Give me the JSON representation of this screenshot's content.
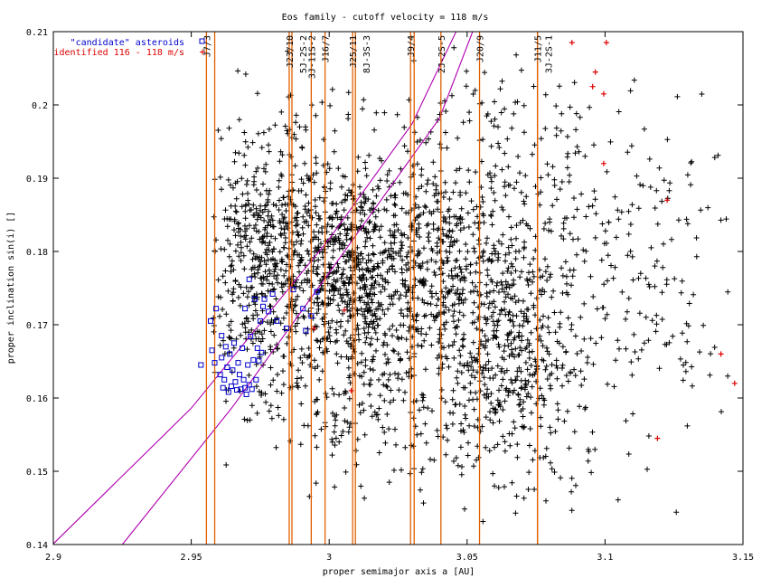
{
  "chart_data": {
    "type": "scatter",
    "title": "Eos family - cutoff velocity = 118 m/s",
    "xlabel": "proper semimajor axis a [AU]",
    "ylabel": "proper inclination sin(i) []",
    "xlim": [
      2.9,
      3.15
    ],
    "ylim": [
      0.14,
      0.21
    ],
    "x_ticks": [
      "2.9",
      "2.95",
      "3",
      "3.05",
      "3.1",
      "3.15"
    ],
    "y_ticks": [
      "0.14",
      "0.15",
      "0.16",
      "0.17",
      "0.18",
      "0.19",
      "0.2",
      "0.21"
    ],
    "grid": false,
    "legend_position": "top-left",
    "colors": {
      "family": "#000000",
      "candidate": "#0000cc",
      "identified": "#dd0000",
      "resonance": "#e06000",
      "secular": "#b000b0"
    },
    "series": [
      {
        "name": "\"candidate\" asteroids",
        "marker": "open-square",
        "color": "#0000cc"
      },
      {
        "name": "identified 116 - 118 m/s",
        "marker": "plus",
        "color": "#dd0000"
      }
    ],
    "resonances": [
      {
        "label": "J7/3",
        "a": 2.9555
      },
      {
        "label": "",
        "a": 2.9585
      },
      {
        "label": "J23/10",
        "a": 2.9855
      },
      {
        "label": "5J-2S-2",
        "a": 2.9865
      },
      {
        "label": "3J-11S-2",
        "a": 2.9935
      },
      {
        "label": "J16/7",
        "a": 2.9985
      },
      {
        "label": "J25/11",
        "a": 3.0085
      },
      {
        "label": "8J-3S-3",
        "a": 3.0095
      },
      {
        "label": "J9/4",
        "a": 3.0295
      },
      {
        "label": "",
        "a": 3.0308
      },
      {
        "label": "2J-2S-5",
        "a": 3.0405
      },
      {
        "label": "J20/9",
        "a": 3.0545
      },
      {
        "label": "J11/5",
        "a": 3.0755
      },
      {
        "label": "3J-2S-1",
        "a": 3.0755
      }
    ],
    "secular_lines": [
      {
        "points": [
          [
            2.9,
            0.1401
          ],
          [
            2.95,
            0.1586
          ],
          [
            3.0,
            0.1817
          ],
          [
            3.03,
            0.1974
          ],
          [
            3.046,
            0.21
          ]
        ]
      },
      {
        "points": [
          [
            2.925,
            0.14
          ],
          [
            2.965,
            0.1588
          ],
          [
            3.0,
            0.1771
          ],
          [
            3.04,
            0.1982
          ],
          [
            3.052,
            0.21
          ]
        ]
      }
    ],
    "density_clusters": [
      {
        "a": 2.975,
        "sini": 0.178,
        "sa": 0.012,
        "si": 0.008,
        "n": 420
      },
      {
        "a": 3.01,
        "sini": 0.176,
        "sa": 0.014,
        "si": 0.007,
        "n": 640
      },
      {
        "a": 3.045,
        "sini": 0.177,
        "sa": 0.012,
        "si": 0.008,
        "n": 380
      },
      {
        "a": 3.065,
        "sini": 0.167,
        "sa": 0.01,
        "si": 0.008,
        "n": 320
      },
      {
        "a": 2.995,
        "sini": 0.185,
        "sa": 0.02,
        "si": 0.009,
        "n": 260
      },
      {
        "a": 3.085,
        "sini": 0.175,
        "sa": 0.018,
        "si": 0.012,
        "n": 200
      },
      {
        "a": 3.12,
        "sini": 0.178,
        "sa": 0.014,
        "si": 0.012,
        "n": 90
      },
      {
        "a": 3.0,
        "sini": 0.16,
        "sa": 0.014,
        "si": 0.006,
        "n": 110
      },
      {
        "a": 3.04,
        "sini": 0.16,
        "sa": 0.018,
        "si": 0.007,
        "n": 110
      },
      {
        "a": 2.93,
        "sini": 0.182,
        "sa": 0.012,
        "si": 0.004,
        "n": 20
      },
      {
        "a": 3.06,
        "sini": 0.195,
        "sa": 0.02,
        "si": 0.008,
        "n": 120
      },
      {
        "a": 3.07,
        "sini": 0.153,
        "sa": 0.015,
        "si": 0.005,
        "n": 50
      }
    ],
    "candidates": [
      [
        2.9535,
        0.1645
      ],
      [
        2.957,
        0.1705
      ],
      [
        2.9575,
        0.1665
      ],
      [
        2.9585,
        0.1648
      ],
      [
        2.959,
        0.1722
      ],
      [
        2.9605,
        0.1632
      ],
      [
        2.961,
        0.1655
      ],
      [
        2.961,
        0.1685
      ],
      [
        2.9615,
        0.1614
      ],
      [
        2.962,
        0.1625
      ],
      [
        2.9625,
        0.167
      ],
      [
        2.963,
        0.1642
      ],
      [
        2.9635,
        0.1608
      ],
      [
        2.964,
        0.166
      ],
      [
        2.9645,
        0.1616
      ],
      [
        2.965,
        0.1638
      ],
      [
        2.9655,
        0.1675
      ],
      [
        2.966,
        0.1622
      ],
      [
        2.9665,
        0.1611
      ],
      [
        2.967,
        0.1648
      ],
      [
        2.9675,
        0.1632
      ],
      [
        2.968,
        0.1612
      ],
      [
        2.9685,
        0.1668
      ],
      [
        2.969,
        0.1625
      ],
      [
        2.9695,
        0.1614
      ],
      [
        2.9695,
        0.1722
      ],
      [
        2.97,
        0.1605
      ],
      [
        2.9705,
        0.1645
      ],
      [
        2.971,
        0.1618
      ],
      [
        2.971,
        0.1762
      ],
      [
        2.9715,
        0.1684
      ],
      [
        2.972,
        0.1612
      ],
      [
        2.9725,
        0.1652
      ],
      [
        2.973,
        0.1735
      ],
      [
        2.9735,
        0.1625
      ],
      [
        2.974,
        0.1668
      ],
      [
        2.9745,
        0.1651
      ],
      [
        2.975,
        0.1705
      ],
      [
        2.9755,
        0.1662
      ],
      [
        2.976,
        0.1725
      ],
      [
        2.9765,
        0.1735
      ],
      [
        2.978,
        0.1718
      ],
      [
        2.9795,
        0.1742
      ],
      [
        2.981,
        0.1705
      ],
      [
        2.9845,
        0.1695
      ],
      [
        2.987,
        0.1748
      ],
      [
        2.9905,
        0.1722
      ],
      [
        2.9915,
        0.1692
      ],
      [
        2.9935,
        0.1712
      ],
      [
        2.9955,
        0.1745
      ]
    ],
    "identified": [
      [
        3.088,
        0.2085
      ],
      [
        3.1005,
        0.2085
      ],
      [
        3.0965,
        0.2045
      ],
      [
        3.0955,
        0.2025
      ],
      [
        3.0995,
        0.2015
      ],
      [
        3.0995,
        0.192
      ],
      [
        3.1225,
        0.187
      ],
      [
        3.142,
        0.166
      ],
      [
        3.147,
        0.162
      ],
      [
        3.119,
        0.1545
      ],
      [
        3.008,
        0.161
      ],
      [
        3.0055,
        0.172
      ],
      [
        2.9945,
        0.1695
      ]
    ]
  }
}
